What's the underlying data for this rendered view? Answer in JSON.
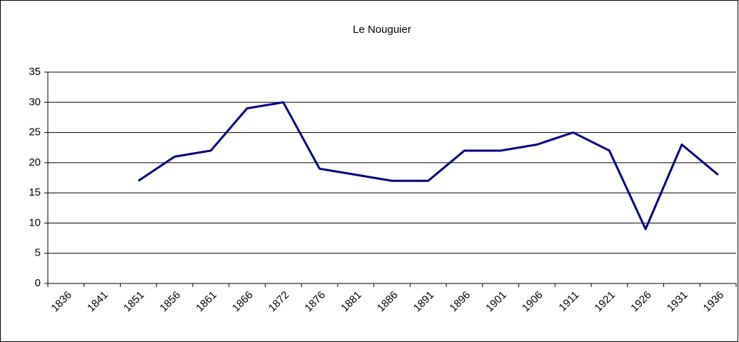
{
  "chart_data": {
    "type": "line",
    "title": "Le Nouguier",
    "categories": [
      "1836",
      "1841",
      "1851",
      "1856",
      "1861",
      "1866",
      "1872",
      "1876",
      "1881",
      "1886",
      "1891",
      "1896",
      "1901",
      "1906",
      "1911",
      "1921",
      "1926",
      "1931",
      "1936"
    ],
    "series": [
      {
        "name": "Le Nouguier",
        "color": "#000080",
        "values": [
          null,
          null,
          17,
          21,
          22,
          29,
          30,
          19,
          18,
          17,
          17,
          22,
          22,
          23,
          25,
          22,
          9,
          23,
          18
        ]
      }
    ],
    "ylim": [
      0,
      35
    ],
    "yticks": [
      0,
      5,
      10,
      15,
      20,
      25,
      30,
      35
    ],
    "grid": true
  }
}
